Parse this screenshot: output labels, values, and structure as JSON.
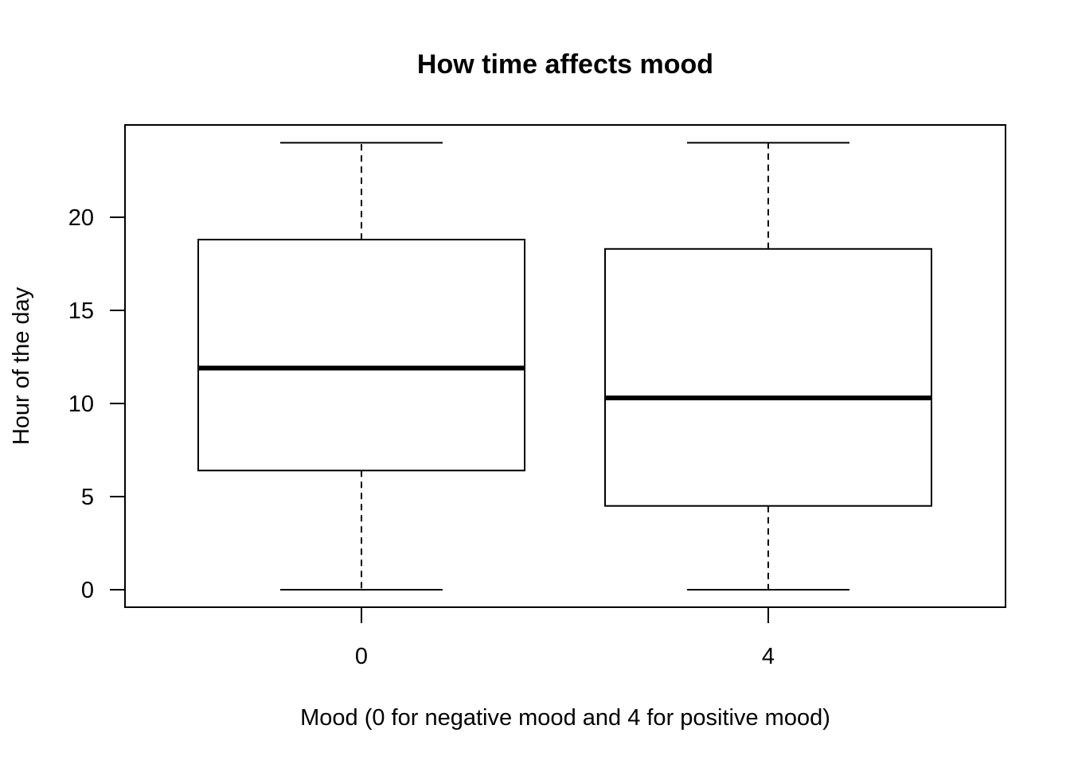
{
  "chart_data": {
    "type": "box",
    "title": "How time affects mood",
    "xlabel": "Mood (0 for negative mood and 4 for positive mood)",
    "ylabel": "Hour of the day",
    "categories": [
      "0",
      "4"
    ],
    "boxes": [
      {
        "category": "0",
        "min": 0,
        "q1": 6.4,
        "median": 11.9,
        "q3": 18.8,
        "max": 24
      },
      {
        "category": "4",
        "min": 0,
        "q1": 4.5,
        "median": 10.3,
        "q3": 18.3,
        "max": 24
      }
    ],
    "yticks": [
      0,
      5,
      10,
      15,
      20
    ],
    "ylim": [
      -1,
      25
    ],
    "grid": false,
    "legend": "none"
  }
}
